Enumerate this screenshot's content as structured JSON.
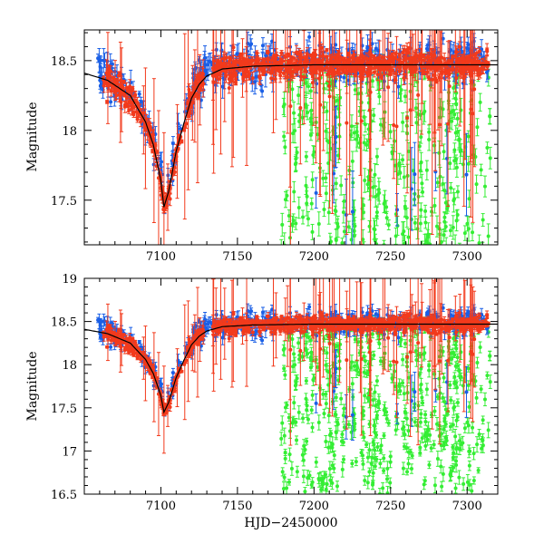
{
  "chart_data": [
    {
      "type": "scatter",
      "panel": "top",
      "ylabel": "Magnitude",
      "xlabel": "",
      "xlim": [
        7050,
        7320
      ],
      "ylim": [
        18.72,
        17.18
      ],
      "y_inverted": true,
      "xticks": [
        7100,
        7150,
        7200,
        7250,
        7300
      ],
      "yticks": [
        17.5,
        18,
        18.5
      ],
      "yticks_label": [
        "17.5",
        "18",
        "18.5"
      ],
      "series": [
        {
          "name": "blue",
          "color": "#1a5fe6",
          "description": "photometric points with error bars"
        },
        {
          "name": "red",
          "color": "#f23a1c",
          "description": "photometric points with error bars"
        },
        {
          "name": "green",
          "color": "#34ee34",
          "description": "photometric points with error bars"
        },
        {
          "name": "model",
          "color": "#000000",
          "type": "line"
        }
      ],
      "model": {
        "x": [
          7050,
          7065,
          7080,
          7090,
          7095,
          7100,
          7102,
          7105,
          7110,
          7115,
          7120,
          7125,
          7130,
          7140,
          7160,
          7200,
          7250,
          7320
        ],
        "y": [
          18.41,
          18.36,
          18.25,
          18.06,
          17.9,
          17.64,
          17.45,
          17.56,
          17.85,
          18.05,
          18.23,
          18.33,
          18.39,
          18.44,
          18.46,
          18.47,
          18.47,
          18.47
        ]
      }
    },
    {
      "type": "scatter",
      "panel": "bottom",
      "ylabel": "Magnitude",
      "xlabel": "HJD−2450000",
      "xlim": [
        7050,
        7320
      ],
      "ylim": [
        19.0,
        16.5
      ],
      "y_inverted": true,
      "xticks": [
        7100,
        7150,
        7200,
        7250,
        7300
      ],
      "yticks": [
        16.5,
        17,
        17.5,
        18,
        18.5,
        19
      ],
      "yticks_label": [
        "16.5",
        "17",
        "17.5",
        "18",
        "18.5",
        "19"
      ],
      "series": [
        {
          "name": "blue",
          "color": "#1a5fe6",
          "description": "photometric points with error bars"
        },
        {
          "name": "red",
          "color": "#f23a1c",
          "description": "photometric points with error bars"
        },
        {
          "name": "green",
          "color": "#34ee34",
          "description": "photometric points with error bars"
        },
        {
          "name": "model",
          "color": "#000000",
          "type": "line"
        }
      ],
      "model": {
        "x": [
          7050,
          7065,
          7080,
          7090,
          7095,
          7100,
          7102,
          7105,
          7110,
          7115,
          7120,
          7125,
          7130,
          7140,
          7160,
          7200,
          7250,
          7320
        ],
        "y": [
          18.41,
          18.36,
          18.25,
          18.06,
          17.9,
          17.64,
          17.45,
          17.56,
          17.85,
          18.05,
          18.23,
          18.33,
          18.39,
          18.44,
          18.46,
          18.47,
          18.47,
          18.47
        ]
      }
    }
  ]
}
